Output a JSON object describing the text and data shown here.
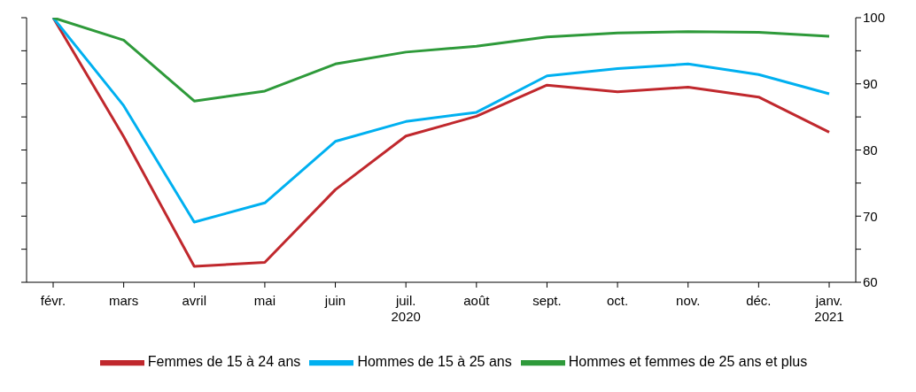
{
  "chart_data": {
    "type": "line",
    "categories": [
      "févr.",
      "mars",
      "avril",
      "mai",
      "juin",
      "juil.\n2020",
      "août",
      "sept.",
      "oct.",
      "nov.",
      "déc.",
      "janv.\n2021"
    ],
    "series": [
      {
        "name": "Femmes de 15 à 24 ans",
        "color": "#c0282d",
        "values": [
          100,
          82,
          62.4,
          63,
          74,
          82.1,
          85.1,
          89.8,
          88.8,
          89.5,
          88,
          82.7
        ]
      },
      {
        "name": "Hommes de 15 à 25 ans",
        "color": "#00b0f0",
        "values": [
          100,
          86.7,
          69.1,
          72,
          81.3,
          84.3,
          85.7,
          91.2,
          92.3,
          93,
          91.4,
          88.5
        ]
      },
      {
        "name": "Hommes et femmes de 25 ans et plus",
        "color": "#2e9a3a",
        "values": [
          100,
          96.6,
          87.4,
          88.9,
          93,
          94.8,
          95.7,
          97.1,
          97.7,
          97.9,
          97.8,
          97.2
        ]
      }
    ],
    "ylim": [
      60,
      100
    ],
    "yticks": [
      60,
      {
        "value": 65,
        "label": null
      },
      70,
      {
        "value": 75,
        "label": null
      },
      80,
      {
        "value": 85,
        "label": null
      },
      90,
      {
        "value": 95,
        "label": null
      },
      100
    ],
    "grid": false,
    "legend": "bottom",
    "marker": "none",
    "line_style": "solid"
  }
}
